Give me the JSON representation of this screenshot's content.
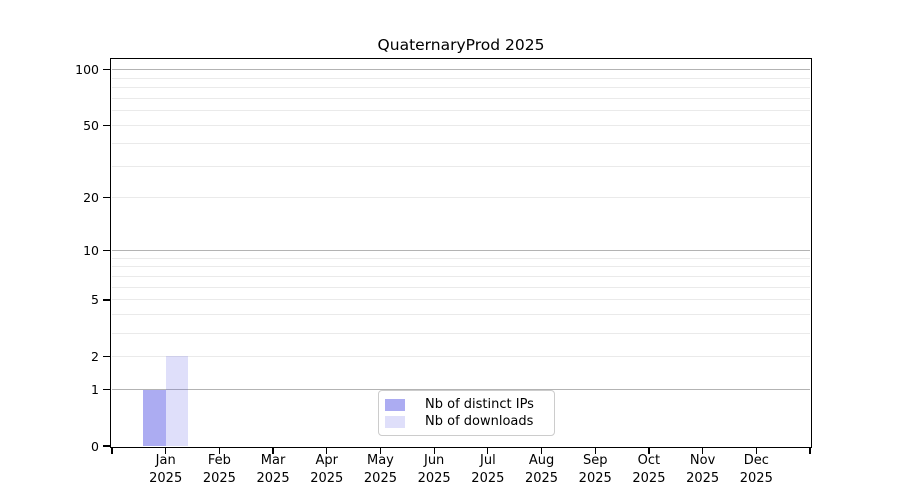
{
  "chart_data": {
    "type": "bar",
    "title": "QuaternaryProd 2025",
    "categories": [
      "Jan 2025",
      "Feb 2025",
      "Mar 2025",
      "Apr 2025",
      "May 2025",
      "Jun 2025",
      "Jul 2025",
      "Aug 2025",
      "Sep 2025",
      "Oct 2025",
      "Nov 2025",
      "Dec 2025"
    ],
    "series": [
      {
        "name": "Nb of distinct IPs",
        "color": "rgba(85,85,229,0.49)",
        "values": [
          1,
          0,
          0,
          0,
          0,
          0,
          0,
          0,
          0,
          0,
          0,
          0
        ]
      },
      {
        "name": "Nb of downloads",
        "color": "rgba(85,85,229,0.19)",
        "values": [
          2,
          0,
          0,
          0,
          0,
          0,
          0,
          0,
          0,
          0,
          0,
          0
        ]
      }
    ],
    "y_axis": {
      "scale": "log1p",
      "tick_values": [
        0,
        1,
        2,
        5,
        10,
        20,
        50,
        100
      ],
      "major_gridlines": [
        1,
        10,
        100
      ],
      "minor_gridlines": [
        2,
        3,
        4,
        5,
        6,
        7,
        8,
        9,
        20,
        30,
        40,
        50,
        60,
        70,
        80,
        90
      ],
      "ylim": [
        0,
        113
      ]
    },
    "x_axis": {
      "edge_ticks": true
    },
    "legend": {
      "location": "lower center"
    },
    "grid": true,
    "colors": {
      "major_grid": "#b3b3b3",
      "minor_grid": "#eaeaea",
      "axis": "#000000",
      "background": "#ffffff"
    }
  }
}
